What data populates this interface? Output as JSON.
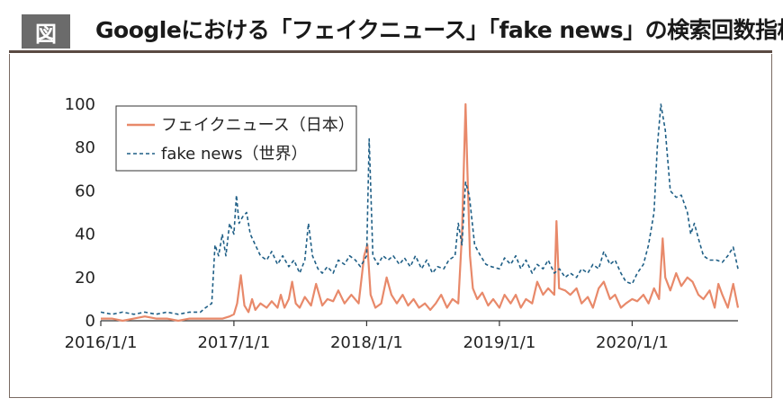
{
  "header": {
    "badge": "図",
    "title": "Googleにおける「フェイクニュース」「fake news」の検索回数指標"
  },
  "colors": {
    "japan": "#e8896a",
    "world": "#1f5f86",
    "badge": "#6b6b6b",
    "rule": "#5a4a42"
  },
  "chart_data": {
    "type": "line",
    "title": "",
    "xlabel": "",
    "ylabel": "",
    "ylim": [
      0,
      100
    ],
    "yticks": [
      "0",
      "20",
      "40",
      "60",
      "80",
      "100"
    ],
    "xticks": [
      "2016/1/1",
      "2017/1/1",
      "2018/1/1",
      "2019/1/1",
      "2020/1/1"
    ],
    "xlim": [
      "2016-01-01",
      "2020-10-18"
    ],
    "legend_position": "top-left",
    "series": [
      {
        "name": "フェイクニュース（日本）",
        "style": "solid",
        "color": "#e8896a",
        "points": [
          [
            "2016-01-01",
            1
          ],
          [
            "2016-02-01",
            1
          ],
          [
            "2016-03-01",
            0
          ],
          [
            "2016-04-01",
            1
          ],
          [
            "2016-05-01",
            2
          ],
          [
            "2016-06-01",
            1
          ],
          [
            "2016-07-01",
            1
          ],
          [
            "2016-08-01",
            0
          ],
          [
            "2016-09-01",
            1
          ],
          [
            "2016-10-01",
            1
          ],
          [
            "2016-11-01",
            1
          ],
          [
            "2016-12-01",
            1
          ],
          [
            "2016-12-20",
            2
          ],
          [
            "2017-01-01",
            3
          ],
          [
            "2017-01-10",
            8
          ],
          [
            "2017-01-20",
            21
          ],
          [
            "2017-01-30",
            7
          ],
          [
            "2017-02-10",
            4
          ],
          [
            "2017-02-20",
            10
          ],
          [
            "2017-03-01",
            5
          ],
          [
            "2017-03-15",
            8
          ],
          [
            "2017-04-01",
            6
          ],
          [
            "2017-04-15",
            9
          ],
          [
            "2017-05-01",
            6
          ],
          [
            "2017-05-10",
            12
          ],
          [
            "2017-05-20",
            6
          ],
          [
            "2017-06-01",
            10
          ],
          [
            "2017-06-10",
            18
          ],
          [
            "2017-06-20",
            8
          ],
          [
            "2017-07-01",
            6
          ],
          [
            "2017-07-15",
            11
          ],
          [
            "2017-08-01",
            7
          ],
          [
            "2017-08-15",
            17
          ],
          [
            "2017-09-01",
            7
          ],
          [
            "2017-09-15",
            10
          ],
          [
            "2017-10-01",
            9
          ],
          [
            "2017-10-15",
            14
          ],
          [
            "2017-11-01",
            8
          ],
          [
            "2017-11-20",
            12
          ],
          [
            "2017-12-10",
            8
          ],
          [
            "2017-12-25",
            30
          ],
          [
            "2018-01-03",
            35
          ],
          [
            "2018-01-12",
            12
          ],
          [
            "2018-01-25",
            6
          ],
          [
            "2018-02-10",
            8
          ],
          [
            "2018-02-25",
            20
          ],
          [
            "2018-03-10",
            12
          ],
          [
            "2018-03-25",
            8
          ],
          [
            "2018-04-10",
            12
          ],
          [
            "2018-04-25",
            7
          ],
          [
            "2018-05-10",
            10
          ],
          [
            "2018-05-25",
            6
          ],
          [
            "2018-06-10",
            8
          ],
          [
            "2018-06-25",
            5
          ],
          [
            "2018-07-10",
            8
          ],
          [
            "2018-07-25",
            12
          ],
          [
            "2018-08-10",
            6
          ],
          [
            "2018-08-25",
            10
          ],
          [
            "2018-09-10",
            8
          ],
          [
            "2018-09-20",
            40
          ],
          [
            "2018-09-25",
            70
          ],
          [
            "2018-09-30",
            100
          ],
          [
            "2018-10-05",
            70
          ],
          [
            "2018-10-12",
            30
          ],
          [
            "2018-10-20",
            15
          ],
          [
            "2018-11-01",
            10
          ],
          [
            "2018-11-15",
            13
          ],
          [
            "2018-12-01",
            7
          ],
          [
            "2018-12-15",
            10
          ],
          [
            "2019-01-01",
            6
          ],
          [
            "2019-01-15",
            12
          ],
          [
            "2019-02-01",
            8
          ],
          [
            "2019-02-15",
            12
          ],
          [
            "2019-03-01",
            6
          ],
          [
            "2019-03-15",
            10
          ],
          [
            "2019-04-01",
            8
          ],
          [
            "2019-04-15",
            18
          ],
          [
            "2019-05-01",
            12
          ],
          [
            "2019-05-15",
            15
          ],
          [
            "2019-06-01",
            12
          ],
          [
            "2019-06-07",
            46
          ],
          [
            "2019-06-14",
            15
          ],
          [
            "2019-07-01",
            14
          ],
          [
            "2019-07-15",
            12
          ],
          [
            "2019-08-01",
            15
          ],
          [
            "2019-08-15",
            8
          ],
          [
            "2019-09-01",
            11
          ],
          [
            "2019-09-15",
            6
          ],
          [
            "2019-10-01",
            15
          ],
          [
            "2019-10-15",
            18
          ],
          [
            "2019-11-01",
            10
          ],
          [
            "2019-11-15",
            12
          ],
          [
            "2019-12-01",
            6
          ],
          [
            "2019-12-15",
            8
          ],
          [
            "2020-01-01",
            10
          ],
          [
            "2020-01-15",
            9
          ],
          [
            "2020-02-01",
            12
          ],
          [
            "2020-02-15",
            8
          ],
          [
            "2020-03-01",
            15
          ],
          [
            "2020-03-15",
            10
          ],
          [
            "2020-03-25",
            38
          ],
          [
            "2020-04-01",
            20
          ],
          [
            "2020-04-15",
            14
          ],
          [
            "2020-05-01",
            22
          ],
          [
            "2020-05-15",
            16
          ],
          [
            "2020-06-01",
            20
          ],
          [
            "2020-06-15",
            18
          ],
          [
            "2020-07-01",
            12
          ],
          [
            "2020-07-15",
            10
          ],
          [
            "2020-08-01",
            14
          ],
          [
            "2020-08-15",
            6
          ],
          [
            "2020-08-25",
            17
          ],
          [
            "2020-09-05",
            12
          ],
          [
            "2020-09-20",
            6
          ],
          [
            "2020-10-05",
            17
          ],
          [
            "2020-10-18",
            6
          ]
        ]
      },
      {
        "name": "fake news（世界）",
        "style": "dashed",
        "color": "#1f5f86",
        "points": [
          [
            "2016-01-01",
            4
          ],
          [
            "2016-02-01",
            3
          ],
          [
            "2016-03-01",
            4
          ],
          [
            "2016-04-01",
            3
          ],
          [
            "2016-05-01",
            4
          ],
          [
            "2016-06-01",
            3
          ],
          [
            "2016-07-01",
            4
          ],
          [
            "2016-08-01",
            3
          ],
          [
            "2016-09-01",
            4
          ],
          [
            "2016-10-01",
            4
          ],
          [
            "2016-10-15",
            6
          ],
          [
            "2016-11-01",
            8
          ],
          [
            "2016-11-10",
            35
          ],
          [
            "2016-11-20",
            30
          ],
          [
            "2016-11-30",
            40
          ],
          [
            "2016-12-10",
            30
          ],
          [
            "2016-12-20",
            45
          ],
          [
            "2017-01-01",
            40
          ],
          [
            "2017-01-08",
            58
          ],
          [
            "2017-01-15",
            45
          ],
          [
            "2017-01-25",
            48
          ],
          [
            "2017-02-05",
            50
          ],
          [
            "2017-02-15",
            40
          ],
          [
            "2017-03-01",
            35
          ],
          [
            "2017-03-15",
            30
          ],
          [
            "2017-04-01",
            28
          ],
          [
            "2017-04-15",
            32
          ],
          [
            "2017-05-01",
            26
          ],
          [
            "2017-05-15",
            30
          ],
          [
            "2017-06-01",
            25
          ],
          [
            "2017-06-15",
            28
          ],
          [
            "2017-07-01",
            22
          ],
          [
            "2017-07-15",
            28
          ],
          [
            "2017-07-25",
            45
          ],
          [
            "2017-08-05",
            30
          ],
          [
            "2017-08-20",
            24
          ],
          [
            "2017-09-01",
            22
          ],
          [
            "2017-09-15",
            25
          ],
          [
            "2017-10-01",
            22
          ],
          [
            "2017-10-15",
            28
          ],
          [
            "2017-11-01",
            26
          ],
          [
            "2017-11-15",
            30
          ],
          [
            "2017-12-01",
            28
          ],
          [
            "2017-12-15",
            25
          ],
          [
            "2018-01-01",
            30
          ],
          [
            "2018-01-08",
            84
          ],
          [
            "2018-01-18",
            30
          ],
          [
            "2018-02-01",
            26
          ],
          [
            "2018-02-15",
            30
          ],
          [
            "2018-03-01",
            28
          ],
          [
            "2018-03-15",
            30
          ],
          [
            "2018-04-01",
            26
          ],
          [
            "2018-04-15",
            29
          ],
          [
            "2018-05-01",
            25
          ],
          [
            "2018-05-15",
            30
          ],
          [
            "2018-06-01",
            24
          ],
          [
            "2018-06-15",
            28
          ],
          [
            "2018-07-01",
            22
          ],
          [
            "2018-07-15",
            25
          ],
          [
            "2018-08-01",
            24
          ],
          [
            "2018-08-15",
            28
          ],
          [
            "2018-09-01",
            30
          ],
          [
            "2018-09-10",
            45
          ],
          [
            "2018-09-20",
            35
          ],
          [
            "2018-09-30",
            64
          ],
          [
            "2018-10-10",
            58
          ],
          [
            "2018-10-25",
            35
          ],
          [
            "2018-11-10",
            30
          ],
          [
            "2018-11-25",
            26
          ],
          [
            "2018-12-10",
            25
          ],
          [
            "2019-01-01",
            24
          ],
          [
            "2019-01-15",
            29
          ],
          [
            "2019-02-01",
            26
          ],
          [
            "2019-02-15",
            30
          ],
          [
            "2019-03-01",
            24
          ],
          [
            "2019-03-15",
            28
          ],
          [
            "2019-04-01",
            22
          ],
          [
            "2019-04-15",
            26
          ],
          [
            "2019-05-01",
            24
          ],
          [
            "2019-05-15",
            28
          ],
          [
            "2019-06-01",
            22
          ],
          [
            "2019-06-15",
            24
          ],
          [
            "2019-07-01",
            20
          ],
          [
            "2019-07-15",
            22
          ],
          [
            "2019-08-01",
            20
          ],
          [
            "2019-08-15",
            24
          ],
          [
            "2019-09-01",
            22
          ],
          [
            "2019-09-15",
            26
          ],
          [
            "2019-10-01",
            24
          ],
          [
            "2019-10-15",
            32
          ],
          [
            "2019-11-01",
            26
          ],
          [
            "2019-11-15",
            28
          ],
          [
            "2019-12-01",
            22
          ],
          [
            "2019-12-15",
            18
          ],
          [
            "2020-01-01",
            17
          ],
          [
            "2020-01-15",
            22
          ],
          [
            "2020-02-01",
            26
          ],
          [
            "2020-02-15",
            35
          ],
          [
            "2020-03-01",
            50
          ],
          [
            "2020-03-10",
            80
          ],
          [
            "2020-03-20",
            100
          ],
          [
            "2020-04-01",
            88
          ],
          [
            "2020-04-15",
            60
          ],
          [
            "2020-05-01",
            57
          ],
          [
            "2020-05-15",
            58
          ],
          [
            "2020-06-01",
            50
          ],
          [
            "2020-06-10",
            40
          ],
          [
            "2020-06-20",
            45
          ],
          [
            "2020-07-01",
            38
          ],
          [
            "2020-07-15",
            30
          ],
          [
            "2020-08-01",
            28
          ],
          [
            "2020-08-20",
            28
          ],
          [
            "2020-09-05",
            27
          ],
          [
            "2020-09-20",
            30
          ],
          [
            "2020-10-05",
            34
          ],
          [
            "2020-10-18",
            24
          ]
        ]
      }
    ]
  }
}
